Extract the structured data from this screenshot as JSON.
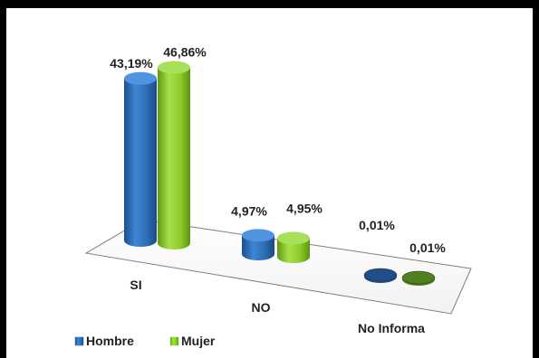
{
  "chart_data": {
    "type": "bar",
    "categories": [
      "SI",
      "NO",
      "No Informa"
    ],
    "series": [
      {
        "name": "Hombre",
        "values": [
          43.19,
          4.97,
          0.01
        ],
        "labels": [
          "43,19%",
          "4,97%",
          "0,01%"
        ],
        "color": "#2E6DB4"
      },
      {
        "name": "Mujer",
        "values": [
          46.86,
          4.95,
          0.01
        ],
        "labels": [
          "46,86%",
          "4,95%",
          "0,01%"
        ],
        "color": "#8CCB2C"
      }
    ],
    "ylim": [
      0,
      50
    ],
    "grid": false,
    "legend": "bottom-left",
    "style": "3d-cylinder"
  }
}
